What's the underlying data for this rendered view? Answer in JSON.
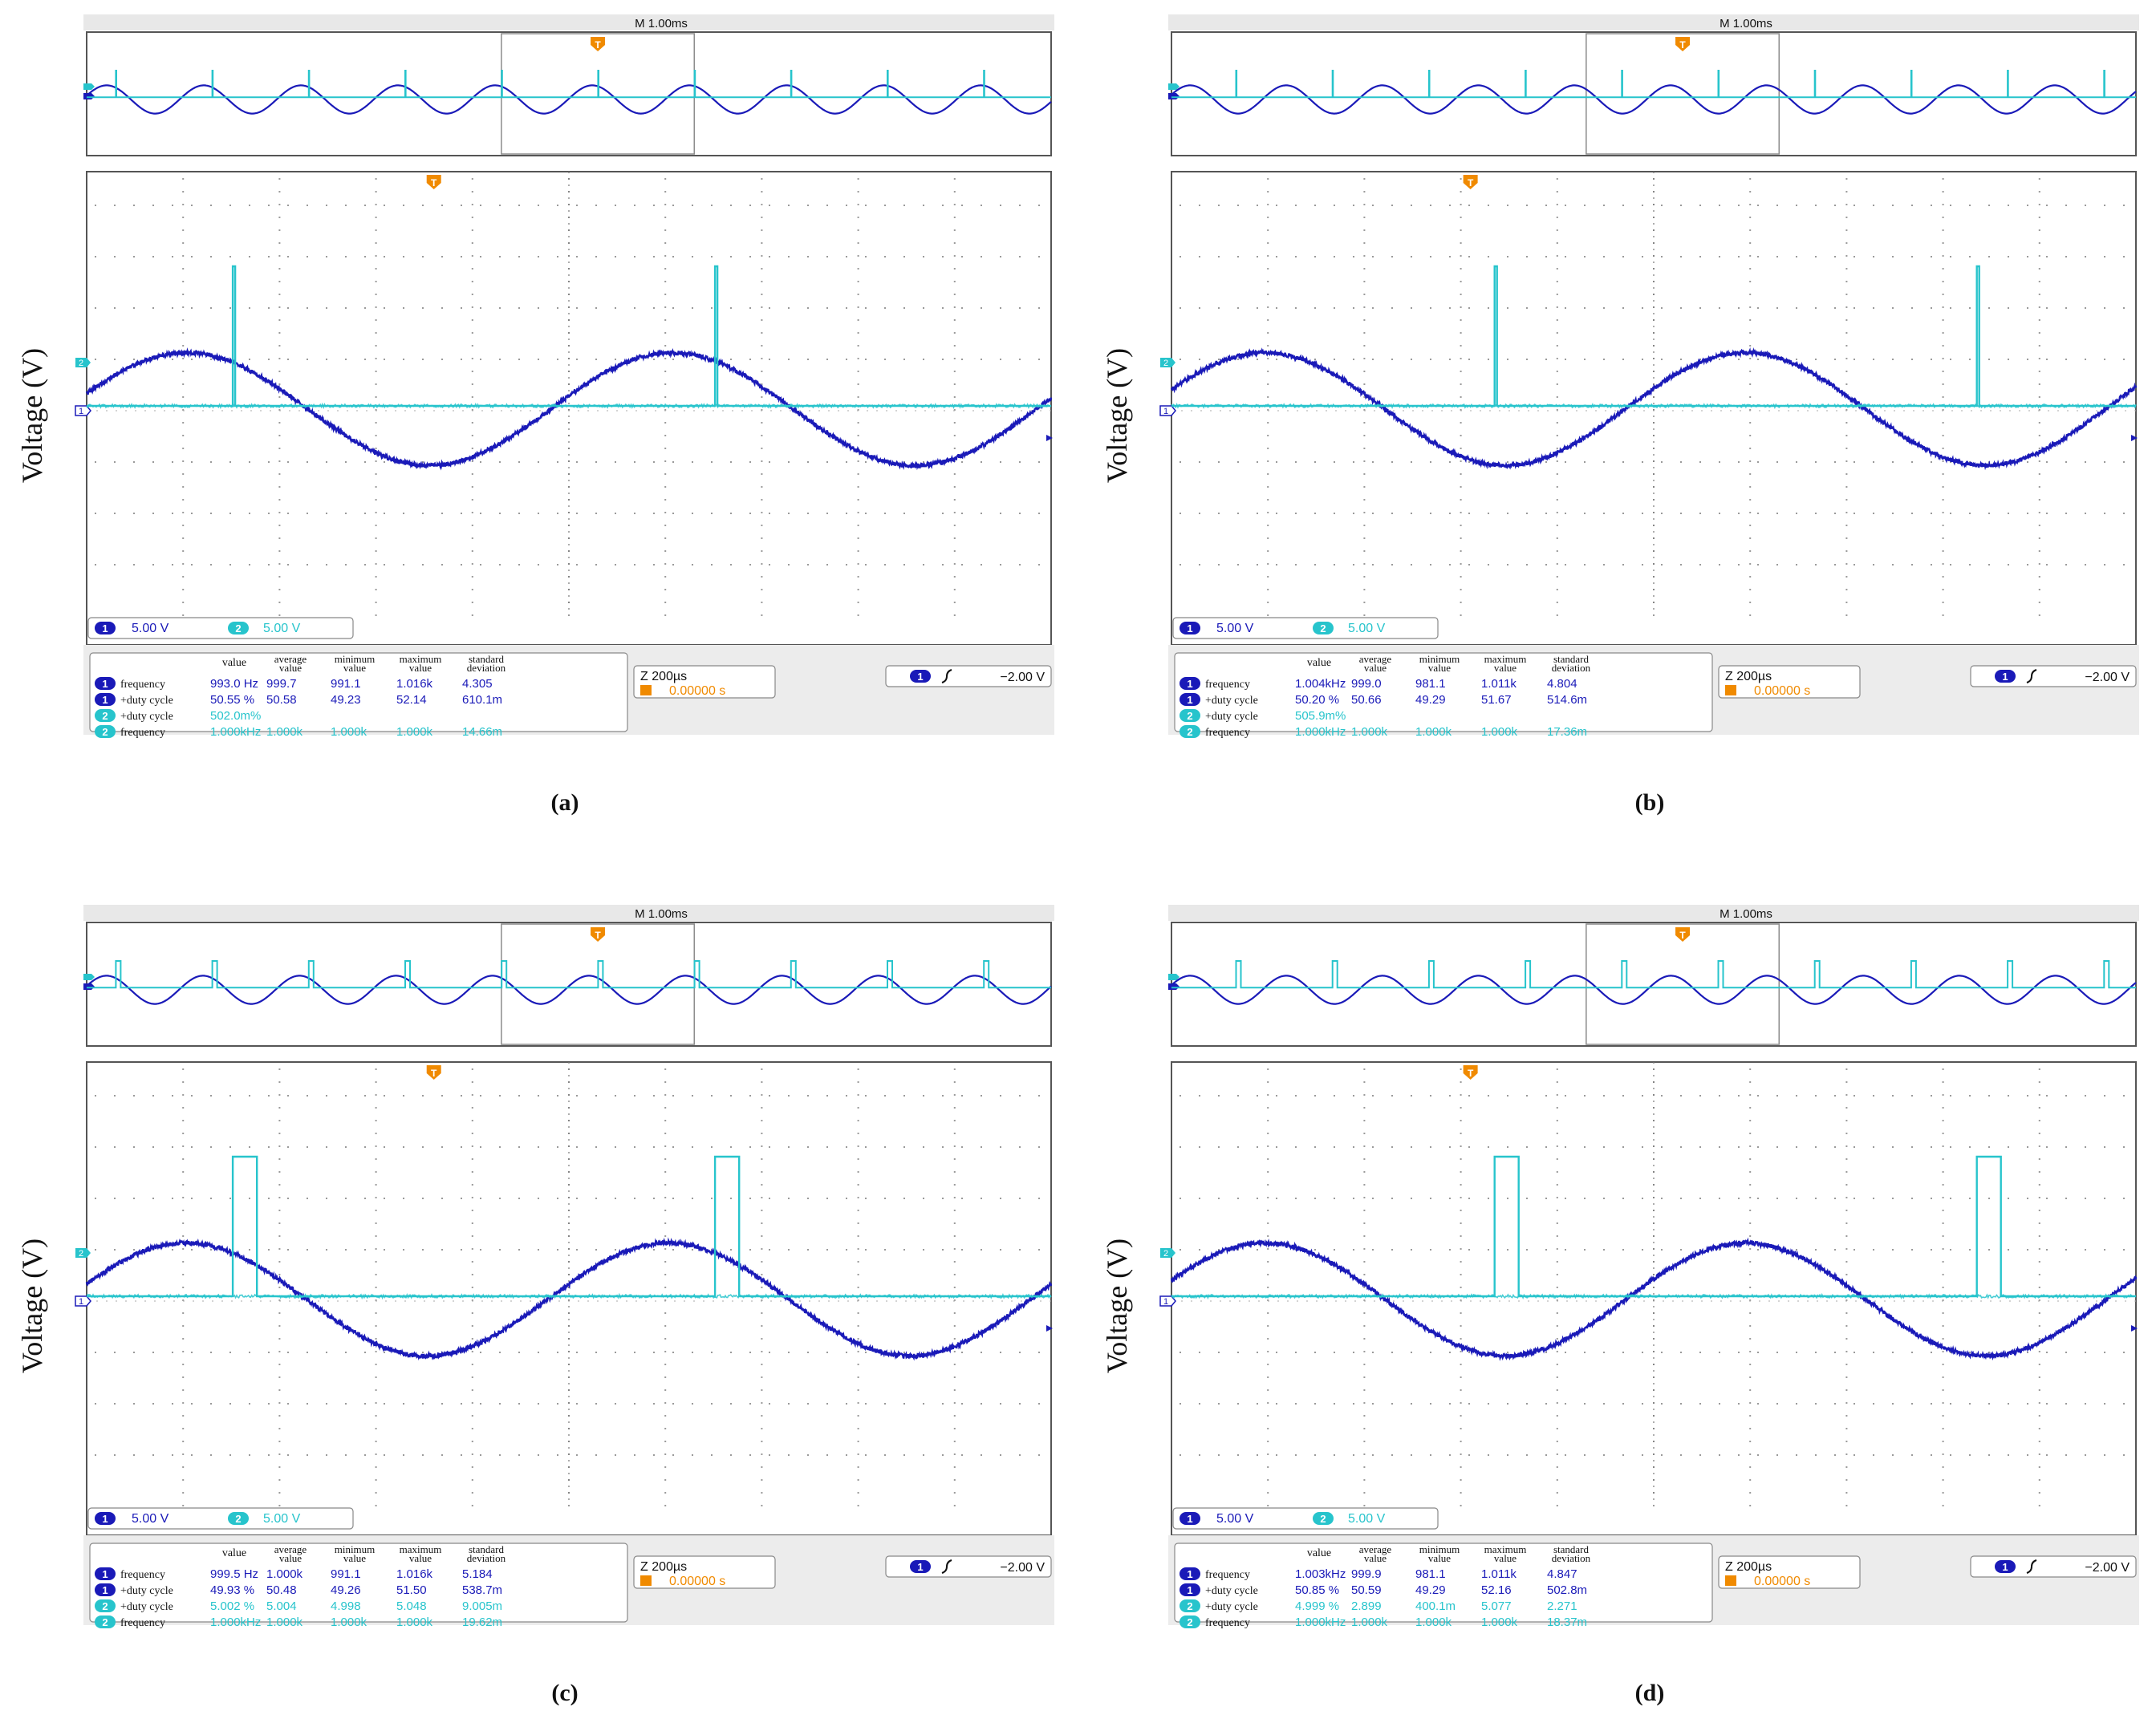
{
  "y_axis_label": "Voltage (V)",
  "colors": {
    "ch1": "#1a1ab8",
    "ch2": "#27c4cc",
    "trigger": "#f08a00",
    "frame": "#555555",
    "grid_dot": "#9a9a9a"
  },
  "common": {
    "timebase": "M 1.00ms",
    "zoom": "Z 200µs",
    "trigger_pos": "0.00000 s",
    "trigger_level": "−2.00 V",
    "ch1_scale": "5.00 V",
    "ch2_scale": "5.00 V",
    "ch1_num": "1",
    "ch2_num": "2",
    "headers": [
      "value",
      "average value",
      "minimum value",
      "maximum value",
      "standard deviation"
    ]
  },
  "chart_data": [
    {
      "type": "line",
      "title": "(a)",
      "xlabel": "",
      "ylabel": "Voltage (V)",
      "zoom_window_ms": 2.0,
      "series": [
        {
          "name": "1",
          "kind": "sine",
          "frequency_hz": 993.0,
          "amplitude_div": 1.1,
          "offset_div": 0,
          "phase_deg": 16
        },
        {
          "name": "2",
          "kind": "pulse",
          "frequency_hz": 1000,
          "duty_cycle_pct": 0.502,
          "high_div": 2.0,
          "low_div": 0.05,
          "pulse_times_ms": [
            0.303,
            1.303
          ]
        }
      ],
      "measurements": [
        {
          "ch": "1",
          "name": "frequency",
          "cells": [
            "993.0 Hz",
            "999.7",
            "991.1",
            "1.016k",
            "4.305"
          ]
        },
        {
          "ch": "1",
          "name": "+duty cycle",
          "cells": [
            "50.55 %",
            "50.58",
            "49.23",
            "52.14",
            "610.1m"
          ]
        },
        {
          "ch": "2",
          "name": "+duty cycle",
          "cells": [
            "502.0m%",
            "",
            "",
            "",
            ""
          ]
        },
        {
          "ch": "2",
          "name": "frequency",
          "cells": [
            "1.000kHz",
            "1.000k",
            "1.000k",
            "1.000k",
            "14.66m"
          ]
        }
      ]
    },
    {
      "type": "line",
      "title": "(b)",
      "xlabel": "",
      "ylabel": "Voltage (V)",
      "zoom_window_ms": 2.0,
      "series": [
        {
          "name": "1",
          "kind": "sine",
          "frequency_hz": 1004,
          "amplitude_div": 1.1,
          "offset_div": 0,
          "phase_deg": 20
        },
        {
          "name": "2",
          "kind": "pulse",
          "frequency_hz": 1000,
          "duty_cycle_pct": 0.506,
          "high_div": 2.0,
          "low_div": 0.05,
          "pulse_times_ms": [
            0.67,
            1.67
          ]
        }
      ],
      "measurements": [
        {
          "ch": "1",
          "name": "frequency",
          "cells": [
            "1.004kHz",
            "999.0",
            "981.1",
            "1.011k",
            "4.804"
          ]
        },
        {
          "ch": "1",
          "name": "+duty cycle",
          "cells": [
            "50.20 %",
            "50.66",
            "49.29",
            "51.67",
            "514.6m"
          ]
        },
        {
          "ch": "2",
          "name": "+duty cycle",
          "cells": [
            "505.9m%",
            "",
            "",
            "",
            ""
          ]
        },
        {
          "ch": "2",
          "name": "frequency",
          "cells": [
            "1.000kHz",
            "1.000k",
            "1.000k",
            "1.000k",
            "17.36m"
          ]
        }
      ]
    },
    {
      "type": "line",
      "title": "(c)",
      "xlabel": "",
      "ylabel": "Voltage (V)",
      "zoom_window_ms": 2.0,
      "series": [
        {
          "name": "1",
          "kind": "sine",
          "frequency_hz": 999.5,
          "amplitude_div": 1.1,
          "offset_div": 0,
          "phase_deg": 16
        },
        {
          "name": "2",
          "kind": "pulse",
          "frequency_hz": 1000,
          "duty_cycle_pct": 5.002,
          "high_div": 2.0,
          "low_div": 0.05,
          "pulse_times_ms": [
            0.303,
            1.303
          ]
        }
      ],
      "measurements": [
        {
          "ch": "1",
          "name": "frequency",
          "cells": [
            "999.5 Hz",
            "1.000k",
            "991.1",
            "1.016k",
            "5.184"
          ]
        },
        {
          "ch": "1",
          "name": "+duty cycle",
          "cells": [
            "49.93 %",
            "50.48",
            "49.26",
            "51.50",
            "538.7m"
          ]
        },
        {
          "ch": "2",
          "name": "+duty cycle",
          "cells": [
            "5.002 %",
            "5.004",
            "4.998",
            "5.048",
            "9.005m"
          ]
        },
        {
          "ch": "2",
          "name": "frequency",
          "cells": [
            "1.000kHz",
            "1.000k",
            "1.000k",
            "1.000k",
            "19.62m"
          ]
        }
      ]
    },
    {
      "type": "line",
      "title": "(d)",
      "xlabel": "",
      "ylabel": "Voltage (V)",
      "zoom_window_ms": 2.0,
      "series": [
        {
          "name": "1",
          "kind": "sine",
          "frequency_hz": 1003,
          "amplitude_div": 1.1,
          "offset_div": 0,
          "phase_deg": 20
        },
        {
          "name": "2",
          "kind": "pulse",
          "frequency_hz": 1000,
          "duty_cycle_pct": 4.999,
          "high_div": 2.0,
          "low_div": 0.05,
          "pulse_times_ms": [
            0.67,
            1.67
          ]
        }
      ],
      "measurements": [
        {
          "ch": "1",
          "name": "frequency",
          "cells": [
            "1.003kHz",
            "999.9",
            "981.1",
            "1.011k",
            "4.847"
          ]
        },
        {
          "ch": "1",
          "name": "+duty cycle",
          "cells": [
            "50.85 %",
            "50.59",
            "49.29",
            "52.16",
            "502.8m"
          ]
        },
        {
          "ch": "2",
          "name": "+duty cycle",
          "cells": [
            "4.999 %",
            "2.899",
            "400.1m",
            "5.077",
            "2.271"
          ]
        },
        {
          "ch": "2",
          "name": "frequency",
          "cells": [
            "1.000kHz",
            "1.000k",
            "1.000k",
            "1.000k",
            "18.37m"
          ]
        }
      ]
    }
  ]
}
